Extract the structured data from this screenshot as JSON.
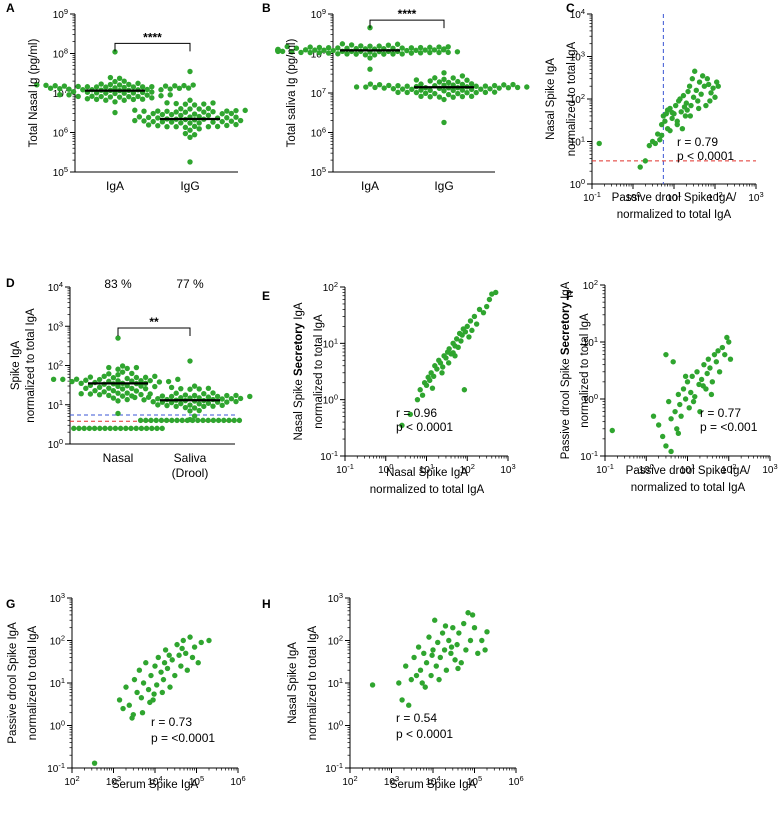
{
  "figure": {
    "background": "#ffffff",
    "dot_color": "#2fa52f",
    "axis_color": "#000000",
    "ref_red": "#e0302b",
    "ref_blue": "#3a56d4"
  },
  "chart_data": [
    {
      "id": "A",
      "label": "A",
      "type": "scatter",
      "subtype": "dot-strip with median",
      "ylabel": "Total Nasal Ig (pg/ml)",
      "yscale": "log",
      "ylim": [
        100000,
        1000000000
      ],
      "ytick_exponents": [
        "5",
        "6",
        "7",
        "8",
        "9"
      ],
      "categories": [
        "IgA",
        "IgG"
      ],
      "series": [
        {
          "name": "IgA",
          "median": 11500000,
          "n": 70,
          "min": 3200000,
          "max": 110000000,
          "sd_log10": 0.3
        },
        {
          "name": "IgG",
          "median": 2200000,
          "n": 70,
          "min": 180000,
          "max": 35000000,
          "sd_log10": 0.45
        }
      ],
      "significance": {
        "between": [
          "IgA",
          "IgG"
        ],
        "label": "****",
        "y": 180000000
      }
    },
    {
      "id": "B",
      "label": "B",
      "type": "scatter",
      "subtype": "dot-strip with median",
      "ylabel": "Total saliva Ig (pg/ml)",
      "yscale": "log",
      "ylim": [
        100000,
        1000000000
      ],
      "ytick_exponents": [
        "5",
        "6",
        "7",
        "8",
        "9"
      ],
      "categories": [
        "IgA",
        "IgG"
      ],
      "series": [
        {
          "name": "IgA",
          "median": 120000000,
          "n": 75,
          "min": 40000000,
          "max": 450000000,
          "sd_log10": 0.15
        },
        {
          "name": "IgG",
          "median": 14000000,
          "n": 70,
          "min": 1800000,
          "max": 130000000,
          "sd_log10": 0.3
        }
      ],
      "significance": {
        "between": [
          "IgA",
          "IgG"
        ],
        "label": "****",
        "y": 700000000
      }
    },
    {
      "id": "C",
      "label": "C",
      "type": "scatter",
      "xlabel": [
        "Passive drool Spike IgA/",
        "normalized to total IgA"
      ],
      "ylabel": [
        "Nasal Spike IgA",
        "normalized to total IgA"
      ],
      "xscale": "log",
      "yscale": "log",
      "xlim": [
        0.1,
        1000
      ],
      "ylim": [
        1,
        10000
      ],
      "xtick_exponents": [
        "-1",
        "0",
        "1",
        "2",
        "3"
      ],
      "ytick_exponents": [
        "0",
        "1",
        "2",
        "3",
        "4"
      ],
      "points": [
        [
          0.15,
          9
        ],
        [
          1.5,
          2.5
        ],
        [
          2,
          3.5
        ],
        [
          2.5,
          8
        ],
        [
          3,
          10
        ],
        [
          3.5,
          9
        ],
        [
          4,
          15
        ],
        [
          4.5,
          11
        ],
        [
          5,
          25
        ],
        [
          5.5,
          40
        ],
        [
          6,
          30
        ],
        [
          6.5,
          45
        ],
        [
          7,
          20
        ],
        [
          8,
          60
        ],
        [
          9,
          35
        ],
        [
          10,
          45
        ],
        [
          11,
          70
        ],
        [
          12,
          25
        ],
        [
          13,
          90
        ],
        [
          15,
          50
        ],
        [
          17,
          120
        ],
        [
          19,
          40
        ],
        [
          20,
          80
        ],
        [
          22,
          150
        ],
        [
          24,
          200
        ],
        [
          26,
          70
        ],
        [
          28,
          300
        ],
        [
          30,
          110
        ],
        [
          32,
          450
        ],
        [
          35,
          160
        ],
        [
          38,
          90
        ],
        [
          42,
          250
        ],
        [
          46,
          130
        ],
        [
          50,
          350
        ],
        [
          55,
          200
        ],
        [
          60,
          70
        ],
        [
          70,
          220
        ],
        [
          80,
          140
        ],
        [
          90,
          180
        ],
        [
          100,
          110
        ],
        [
          110,
          250
        ],
        [
          120,
          200
        ],
        [
          7,
          55
        ],
        [
          9,
          48
        ],
        [
          14,
          100
        ],
        [
          18,
          65
        ],
        [
          25,
          40
        ],
        [
          40,
          60
        ],
        [
          65,
          300
        ],
        [
          75,
          90
        ],
        [
          5,
          14
        ],
        [
          8,
          18
        ],
        [
          12,
          30
        ],
        [
          16,
          20
        ],
        [
          21,
          55
        ]
      ],
      "ref_lines": [
        {
          "axis": "x",
          "value": 5.5,
          "color": "#3a56d4"
        },
        {
          "axis": "y",
          "value": 3.5,
          "color": "#e0302b"
        }
      ],
      "annotation": {
        "r": "r = 0.79",
        "p": "p < 0.0001"
      }
    },
    {
      "id": "D",
      "label": "D",
      "type": "scatter",
      "subtype": "dot-strip with median",
      "ylabel": [
        "Spike IgA",
        "normalized to total IgA"
      ],
      "yscale": "log",
      "ylim": [
        1,
        10000
      ],
      "ytick_exponents": [
        "0",
        "1",
        "2",
        "3",
        "4"
      ],
      "categories": [
        [
          "Nasal"
        ],
        [
          "Saliva",
          "(Drool)"
        ]
      ],
      "percent_labels": [
        "83 %",
        "77 %"
      ],
      "series": [
        {
          "name": "Nasal",
          "median": 35,
          "n": 65,
          "min": 6,
          "max": 500,
          "sd_log10": 0.5,
          "floor_value": 2.5,
          "floor_n": 18
        },
        {
          "name": "Saliva (Drool)",
          "median": 13,
          "n": 55,
          "min": 4.2,
          "max": 130,
          "sd_log10": 0.4,
          "floor_value": 4,
          "floor_n": 20
        }
      ],
      "ref_lines": [
        {
          "axis": "y",
          "value": 5.5,
          "color": "#3a56d4"
        },
        {
          "axis": "y",
          "value": 3.8,
          "color": "#e0302b"
        }
      ],
      "significance": {
        "between": [
          "Nasal",
          "Saliva (Drool)"
        ],
        "label": "**",
        "y": 900
      }
    },
    {
      "id": "E",
      "label": "E",
      "type": "scatter",
      "xlabel": [
        "Nasal Spike IgA",
        "normalized to total IgA"
      ],
      "ylabel_parts": [
        "Nasal Spike ",
        "Secretory",
        " IgA"
      ],
      "ylabel2": "normalized to total IgA",
      "xscale": "log",
      "yscale": "log",
      "xlim": [
        0.1,
        1000
      ],
      "ylim": [
        0.1,
        100
      ],
      "xtick_exponents": [
        "-1",
        "0",
        "1",
        "2",
        "3"
      ],
      "ytick_exponents": [
        "-1",
        "0",
        "1",
        "2"
      ],
      "points": [
        [
          2.5,
          0.35
        ],
        [
          4,
          0.55
        ],
        [
          6,
          1.0
        ],
        [
          7,
          1.5
        ],
        [
          8,
          1.2
        ],
        [
          9,
          2.0
        ],
        [
          10,
          1.8
        ],
        [
          11,
          2.5
        ],
        [
          12,
          2.2
        ],
        [
          13,
          3
        ],
        [
          15,
          2.6
        ],
        [
          16,
          4
        ],
        [
          18,
          3.5
        ],
        [
          20,
          5
        ],
        [
          22,
          4.5
        ],
        [
          25,
          3.8
        ],
        [
          27,
          6
        ],
        [
          30,
          5.5
        ],
        [
          33,
          7
        ],
        [
          36,
          8
        ],
        [
          40,
          6.5
        ],
        [
          45,
          10
        ],
        [
          50,
          9
        ],
        [
          55,
          12
        ],
        [
          60,
          8.5
        ],
        [
          65,
          15
        ],
        [
          70,
          11
        ],
        [
          75,
          14
        ],
        [
          80,
          18
        ],
        [
          90,
          16
        ],
        [
          100,
          20
        ],
        [
          110,
          13
        ],
        [
          120,
          25
        ],
        [
          130,
          17
        ],
        [
          150,
          30
        ],
        [
          170,
          22
        ],
        [
          200,
          40
        ],
        [
          250,
          35
        ],
        [
          300,
          45
        ],
        [
          350,
          60
        ],
        [
          400,
          75
        ],
        [
          500,
          80
        ],
        [
          35,
          4.5
        ],
        [
          50,
          6
        ],
        [
          85,
          1.5
        ],
        [
          14,
          1.6
        ],
        [
          45,
          6.8
        ],
        [
          24,
          3
        ]
      ],
      "annotation": {
        "r": "r = 0.96",
        "p": "p < 0.0001"
      }
    },
    {
      "id": "F",
      "label": "F",
      "type": "scatter",
      "xlabel": [
        "Passive drool Spike IgA/",
        "normalized to total IgA"
      ],
      "ylabel_parts": [
        "Passive drool Spike ",
        "Secretory",
        " IgA"
      ],
      "ylabel2": "normalized to total IgA",
      "xscale": "log",
      "yscale": "log",
      "xlim": [
        0.1,
        1000
      ],
      "ylim": [
        0.1,
        100
      ],
      "xtick_exponents": [
        "-1",
        "0",
        "1",
        "2",
        "3"
      ],
      "ytick_exponents": [
        "-1",
        "0",
        "1",
        "2"
      ],
      "points": [
        [
          0.15,
          0.28
        ],
        [
          1.5,
          0.5
        ],
        [
          2,
          0.35
        ],
        [
          2.5,
          0.22
        ],
        [
          3,
          6
        ],
        [
          3,
          0.15
        ],
        [
          3.5,
          0.9
        ],
        [
          4,
          0.45
        ],
        [
          4.5,
          4.5
        ],
        [
          5,
          0.6
        ],
        [
          5.5,
          0.3
        ],
        [
          6,
          1.2
        ],
        [
          6.5,
          0.8
        ],
        [
          7,
          0.5
        ],
        [
          8,
          1.5
        ],
        [
          9,
          1.0
        ],
        [
          10,
          2
        ],
        [
          11,
          0.7
        ],
        [
          12,
          1.3
        ],
        [
          13,
          2.5
        ],
        [
          15,
          1.1
        ],
        [
          17,
          3
        ],
        [
          19,
          1.8
        ],
        [
          20,
          0.6
        ],
        [
          22,
          2.2
        ],
        [
          25,
          4
        ],
        [
          28,
          1.5
        ],
        [
          30,
          2.8
        ],
        [
          32,
          5
        ],
        [
          35,
          3.5
        ],
        [
          40,
          2
        ],
        [
          45,
          6
        ],
        [
          50,
          4.5
        ],
        [
          55,
          7
        ],
        [
          60,
          3
        ],
        [
          70,
          8
        ],
        [
          80,
          6
        ],
        [
          90,
          12
        ],
        [
          100,
          10
        ],
        [
          110,
          5
        ],
        [
          4,
          0.12
        ],
        [
          6,
          0.25
        ],
        [
          9,
          2.5
        ],
        [
          14,
          0.9
        ],
        [
          24,
          1.7
        ],
        [
          38,
          1.2
        ]
      ],
      "annotation": {
        "r": "r = 0.77",
        "p": "p = <0.001"
      }
    },
    {
      "id": "G",
      "label": "G",
      "type": "scatter",
      "xlabel": [
        "Serum Spike IgA"
      ],
      "ylabel": [
        "Passive drool Spike IgA",
        "normalized to total IgA"
      ],
      "xscale": "log",
      "yscale": "log",
      "xlim": [
        100,
        1000000
      ],
      "ylim": [
        0.1,
        1000
      ],
      "xtick_exponents": [
        "2",
        "3",
        "4",
        "5",
        "6"
      ],
      "ytick_exponents": [
        "-1",
        "0",
        "1",
        "2",
        "3"
      ],
      "points": [
        [
          350,
          0.13
        ],
        [
          1400,
          4
        ],
        [
          1700,
          2.5
        ],
        [
          2000,
          8
        ],
        [
          2400,
          3
        ],
        [
          2800,
          1.5
        ],
        [
          3200,
          12
        ],
        [
          3700,
          6
        ],
        [
          4200,
          20
        ],
        [
          4700,
          4.5
        ],
        [
          5300,
          10
        ],
        [
          6000,
          30
        ],
        [
          7000,
          7
        ],
        [
          8000,
          15
        ],
        [
          9000,
          4
        ],
        [
          10000,
          25
        ],
        [
          11000,
          9
        ],
        [
          12000,
          40
        ],
        [
          14000,
          18
        ],
        [
          16000,
          12
        ],
        [
          18000,
          60
        ],
        [
          20000,
          22
        ],
        [
          23000,
          8
        ],
        [
          26000,
          35
        ],
        [
          30000,
          15
        ],
        [
          34000,
          80
        ],
        [
          38000,
          45
        ],
        [
          42000,
          25
        ],
        [
          48000,
          100
        ],
        [
          55000,
          50
        ],
        [
          60000,
          20
        ],
        [
          70000,
          120
        ],
        [
          80000,
          40
        ],
        [
          90000,
          70
        ],
        [
          110000,
          30
        ],
        [
          130000,
          90
        ],
        [
          200000,
          100
        ],
        [
          5000,
          2
        ],
        [
          7500,
          3.5
        ],
        [
          15000,
          6
        ],
        [
          22000,
          45
        ],
        [
          45000,
          65
        ],
        [
          3000,
          1.8
        ],
        [
          9500,
          5.5
        ],
        [
          17000,
          30
        ]
      ],
      "annotation": {
        "r": "r = 0.73",
        "p": "p = <0.0001"
      }
    },
    {
      "id": "H",
      "label": "H",
      "type": "scatter",
      "xlabel": [
        "Serum Spike IgA"
      ],
      "ylabel": [
        "Nasal Spike IgA",
        "normalized to total IgA"
      ],
      "xscale": "log",
      "yscale": "log",
      "xlim": [
        100,
        1000000
      ],
      "ylim": [
        0.1,
        1000
      ],
      "xtick_exponents": [
        "2",
        "3",
        "4",
        "5",
        "6"
      ],
      "ytick_exponents": [
        "-1",
        "0",
        "1",
        "2",
        "3"
      ],
      "points": [
        [
          350,
          9
        ],
        [
          1500,
          10
        ],
        [
          1800,
          4
        ],
        [
          2200,
          25
        ],
        [
          2600,
          3
        ],
        [
          3000,
          12
        ],
        [
          3500,
          40
        ],
        [
          4000,
          15
        ],
        [
          4500,
          70
        ],
        [
          5000,
          20
        ],
        [
          5500,
          10
        ],
        [
          6000,
          50
        ],
        [
          7000,
          30
        ],
        [
          8000,
          120
        ],
        [
          9000,
          15
        ],
        [
          10000,
          60
        ],
        [
          11000,
          300
        ],
        [
          12000,
          25
        ],
        [
          13000,
          90
        ],
        [
          15000,
          40
        ],
        [
          17000,
          150
        ],
        [
          19000,
          60
        ],
        [
          21000,
          20
        ],
        [
          24000,
          100
        ],
        [
          27000,
          50
        ],
        [
          30000,
          200
        ],
        [
          34000,
          35
        ],
        [
          38000,
          80
        ],
        [
          42000,
          150
        ],
        [
          48000,
          30
        ],
        [
          55000,
          250
        ],
        [
          62000,
          60
        ],
        [
          70000,
          450
        ],
        [
          80000,
          100
        ],
        [
          90000,
          400
        ],
        [
          100000,
          200
        ],
        [
          120000,
          50
        ],
        [
          150000,
          100
        ],
        [
          200000,
          160
        ],
        [
          180000,
          60
        ],
        [
          6500,
          8
        ],
        [
          9500,
          45
        ],
        [
          14000,
          12
        ],
        [
          20000,
          220
        ],
        [
          28000,
          70
        ],
        [
          40000,
          22
        ]
      ],
      "annotation": {
        "r": "r = 0.54",
        "p": "p < 0.0001"
      }
    }
  ]
}
